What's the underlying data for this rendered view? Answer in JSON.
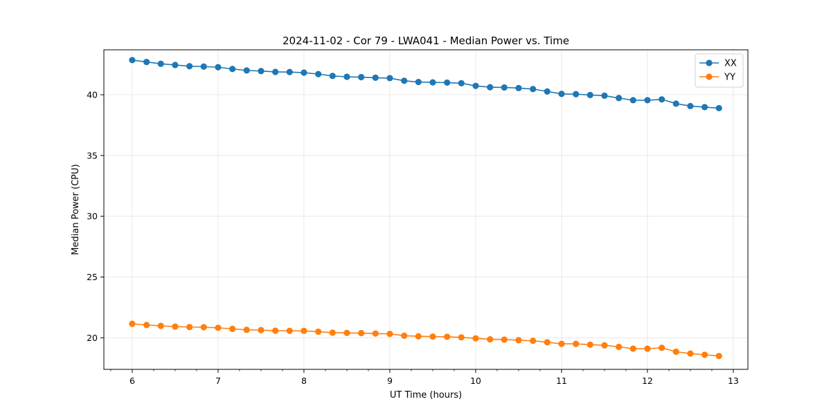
{
  "chart_data": {
    "type": "line",
    "title": "2024-11-02 - Cor 79 - LWA041 - Median Power vs. Time",
    "xlabel": "UT Time (hours)",
    "ylabel": "Median Power (CPU)",
    "xlim": [
      5.67,
      13.17
    ],
    "ylim": [
      17.4,
      43.7
    ],
    "xticks": [
      "6",
      "7",
      "8",
      "9",
      "10",
      "11",
      "12",
      "13"
    ],
    "yticks": [
      "20",
      "25",
      "30",
      "35",
      "40"
    ],
    "grid": true,
    "legend_position": "top-right",
    "x": [
      6.0,
      6.167,
      6.333,
      6.5,
      6.667,
      6.833,
      7.0,
      7.167,
      7.333,
      7.5,
      7.667,
      7.833,
      8.0,
      8.167,
      8.333,
      8.5,
      8.667,
      8.833,
      9.0,
      9.167,
      9.333,
      9.5,
      9.667,
      9.833,
      10.0,
      10.167,
      10.333,
      10.5,
      10.667,
      10.833,
      11.0,
      11.167,
      11.333,
      11.5,
      11.667,
      11.833,
      12.0,
      12.167,
      12.333,
      12.5,
      12.667,
      12.833
    ],
    "series": [
      {
        "name": "XX",
        "color": "#1f77b4",
        "values": [
          42.85,
          42.7,
          42.55,
          42.45,
          42.35,
          42.32,
          42.27,
          42.12,
          42.0,
          41.95,
          41.88,
          41.87,
          41.82,
          41.7,
          41.55,
          41.48,
          41.45,
          41.4,
          41.37,
          41.15,
          41.05,
          41.02,
          41.0,
          40.95,
          40.73,
          40.62,
          40.6,
          40.55,
          40.47,
          40.27,
          40.07,
          40.05,
          39.98,
          39.92,
          39.73,
          39.55,
          39.55,
          39.62,
          39.27,
          39.07,
          38.98,
          38.9
        ]
      },
      {
        "name": "YY",
        "color": "#ff7f0e",
        "values": [
          21.15,
          21.05,
          20.98,
          20.92,
          20.88,
          20.87,
          20.82,
          20.73,
          20.65,
          20.63,
          20.58,
          20.57,
          20.57,
          20.5,
          20.42,
          20.4,
          20.38,
          20.35,
          20.32,
          20.17,
          20.12,
          20.1,
          20.08,
          20.03,
          19.95,
          19.87,
          19.85,
          19.8,
          19.75,
          19.63,
          19.5,
          19.5,
          19.43,
          19.38,
          19.25,
          19.1,
          19.1,
          19.17,
          18.85,
          18.7,
          18.6,
          18.5
        ]
      }
    ]
  }
}
